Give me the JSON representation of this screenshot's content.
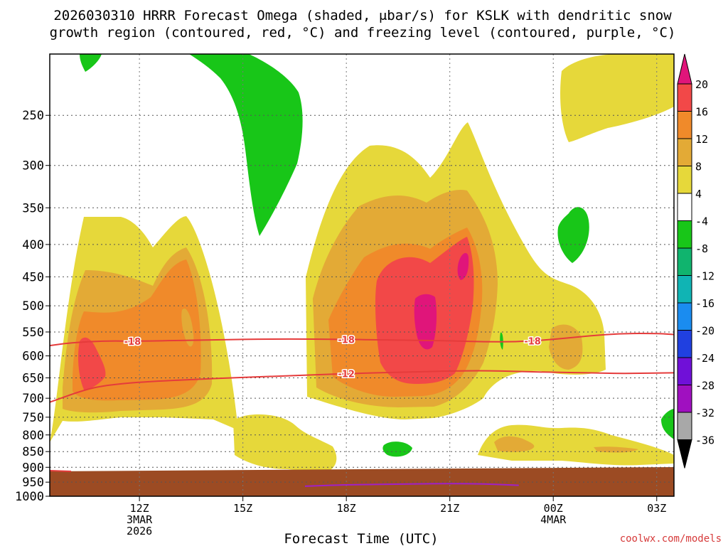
{
  "chart_data": {
    "type": "contour",
    "title_line1": "2026030310 HRRR Forecast Omega (shaded, μbar/s) for KSLK with dendritic snow",
    "title_line2": "growth region (contoured, red, °C) and freezing level (contoured, purple, °C)",
    "xlabel": "Forecast Time (UTC)",
    "credit": "coolwx.com/models",
    "x_range_hours": [
      9.4,
      27.5
    ],
    "y_range_hpa": [
      200,
      1000
    ],
    "y_ticks": [
      250,
      300,
      350,
      400,
      450,
      500,
      550,
      600,
      650,
      700,
      750,
      800,
      850,
      900,
      950,
      1000
    ],
    "x_ticks": [
      {
        "hour": 12,
        "label": "12Z",
        "sub1": "3MAR",
        "sub2": "2026"
      },
      {
        "hour": 15,
        "label": "15Z",
        "sub1": "",
        "sub2": ""
      },
      {
        "hour": 18,
        "label": "18Z",
        "sub1": "",
        "sub2": ""
      },
      {
        "hour": 21,
        "label": "21Z",
        "sub1": "",
        "sub2": ""
      },
      {
        "hour": 24,
        "label": "00Z",
        "sub1": "4MAR",
        "sub2": ""
      },
      {
        "hour": 27,
        "label": "03Z",
        "sub1": "",
        "sub2": ""
      }
    ],
    "colorbar": {
      "labels": [
        "20",
        "16",
        "12",
        "8",
        "4",
        "-4",
        "-8",
        "-12",
        "-16",
        "-20",
        "-24",
        "-28",
        "-32",
        "-36"
      ],
      "colors": [
        "#f24848",
        "#f08a2a",
        "#e3aa36",
        "#e6d83a",
        "#ffffff",
        "#18c618",
        "#10b46e",
        "#10b4b4",
        "#1a8cf0",
        "#2040e0",
        "#7010d8",
        "#a010c0",
        "#a8a8a8"
      ],
      "top_arrow": "#e0157a",
      "bottom_arrow": "#000000"
    },
    "contours": [
      {
        "label": "-18",
        "color": "#e53b3b",
        "points": [
          [
            9.4,
            578
          ],
          [
            10,
            572
          ],
          [
            11,
            568
          ],
          [
            12,
            569
          ],
          [
            14,
            566
          ],
          [
            16,
            564
          ],
          [
            18,
            565
          ],
          [
            19,
            566
          ],
          [
            20,
            567
          ],
          [
            21,
            568
          ],
          [
            22,
            570
          ],
          [
            23,
            570
          ],
          [
            24,
            565
          ],
          [
            25,
            558
          ],
          [
            26,
            553
          ],
          [
            27,
            553
          ],
          [
            27.5,
            555
          ]
        ],
        "label_hours": [
          11.8,
          18.0,
          23.4
        ]
      },
      {
        "label": "-12",
        "color": "#e53b3b",
        "points": [
          [
            9.4,
            710
          ],
          [
            10.4,
            679
          ],
          [
            11,
            668
          ],
          [
            12,
            660
          ],
          [
            14,
            652
          ],
          [
            16,
            646
          ],
          [
            18,
            640
          ],
          [
            20,
            636
          ],
          [
            21,
            634
          ],
          [
            22,
            633
          ],
          [
            23,
            635
          ],
          [
            24,
            637
          ],
          [
            25,
            638
          ],
          [
            26,
            640
          ],
          [
            27.5,
            638
          ]
        ],
        "label_hours": [
          18.0
        ]
      },
      {
        "label": "0",
        "color": "#a020c8",
        "points": [
          [
            16.8,
            964
          ],
          [
            18,
            959
          ],
          [
            20,
            956
          ],
          [
            21,
            955
          ],
          [
            22,
            956
          ],
          [
            23,
            961
          ]
        ],
        "label_hours": []
      }
    ],
    "shaded_levels": [
      {
        "level": "4",
        "color": "#e6d83a"
      },
      {
        "level": "8",
        "color": "#e3aa36"
      },
      {
        "level": "12",
        "color": "#f08a2a"
      },
      {
        "level": "16",
        "color": "#f24848"
      },
      {
        "level": "20",
        "color": "#e0157a"
      },
      {
        "level": "-4",
        "color": "#18c618"
      },
      {
        "level": "terrain",
        "color": "#9c4b23"
      }
    ]
  }
}
